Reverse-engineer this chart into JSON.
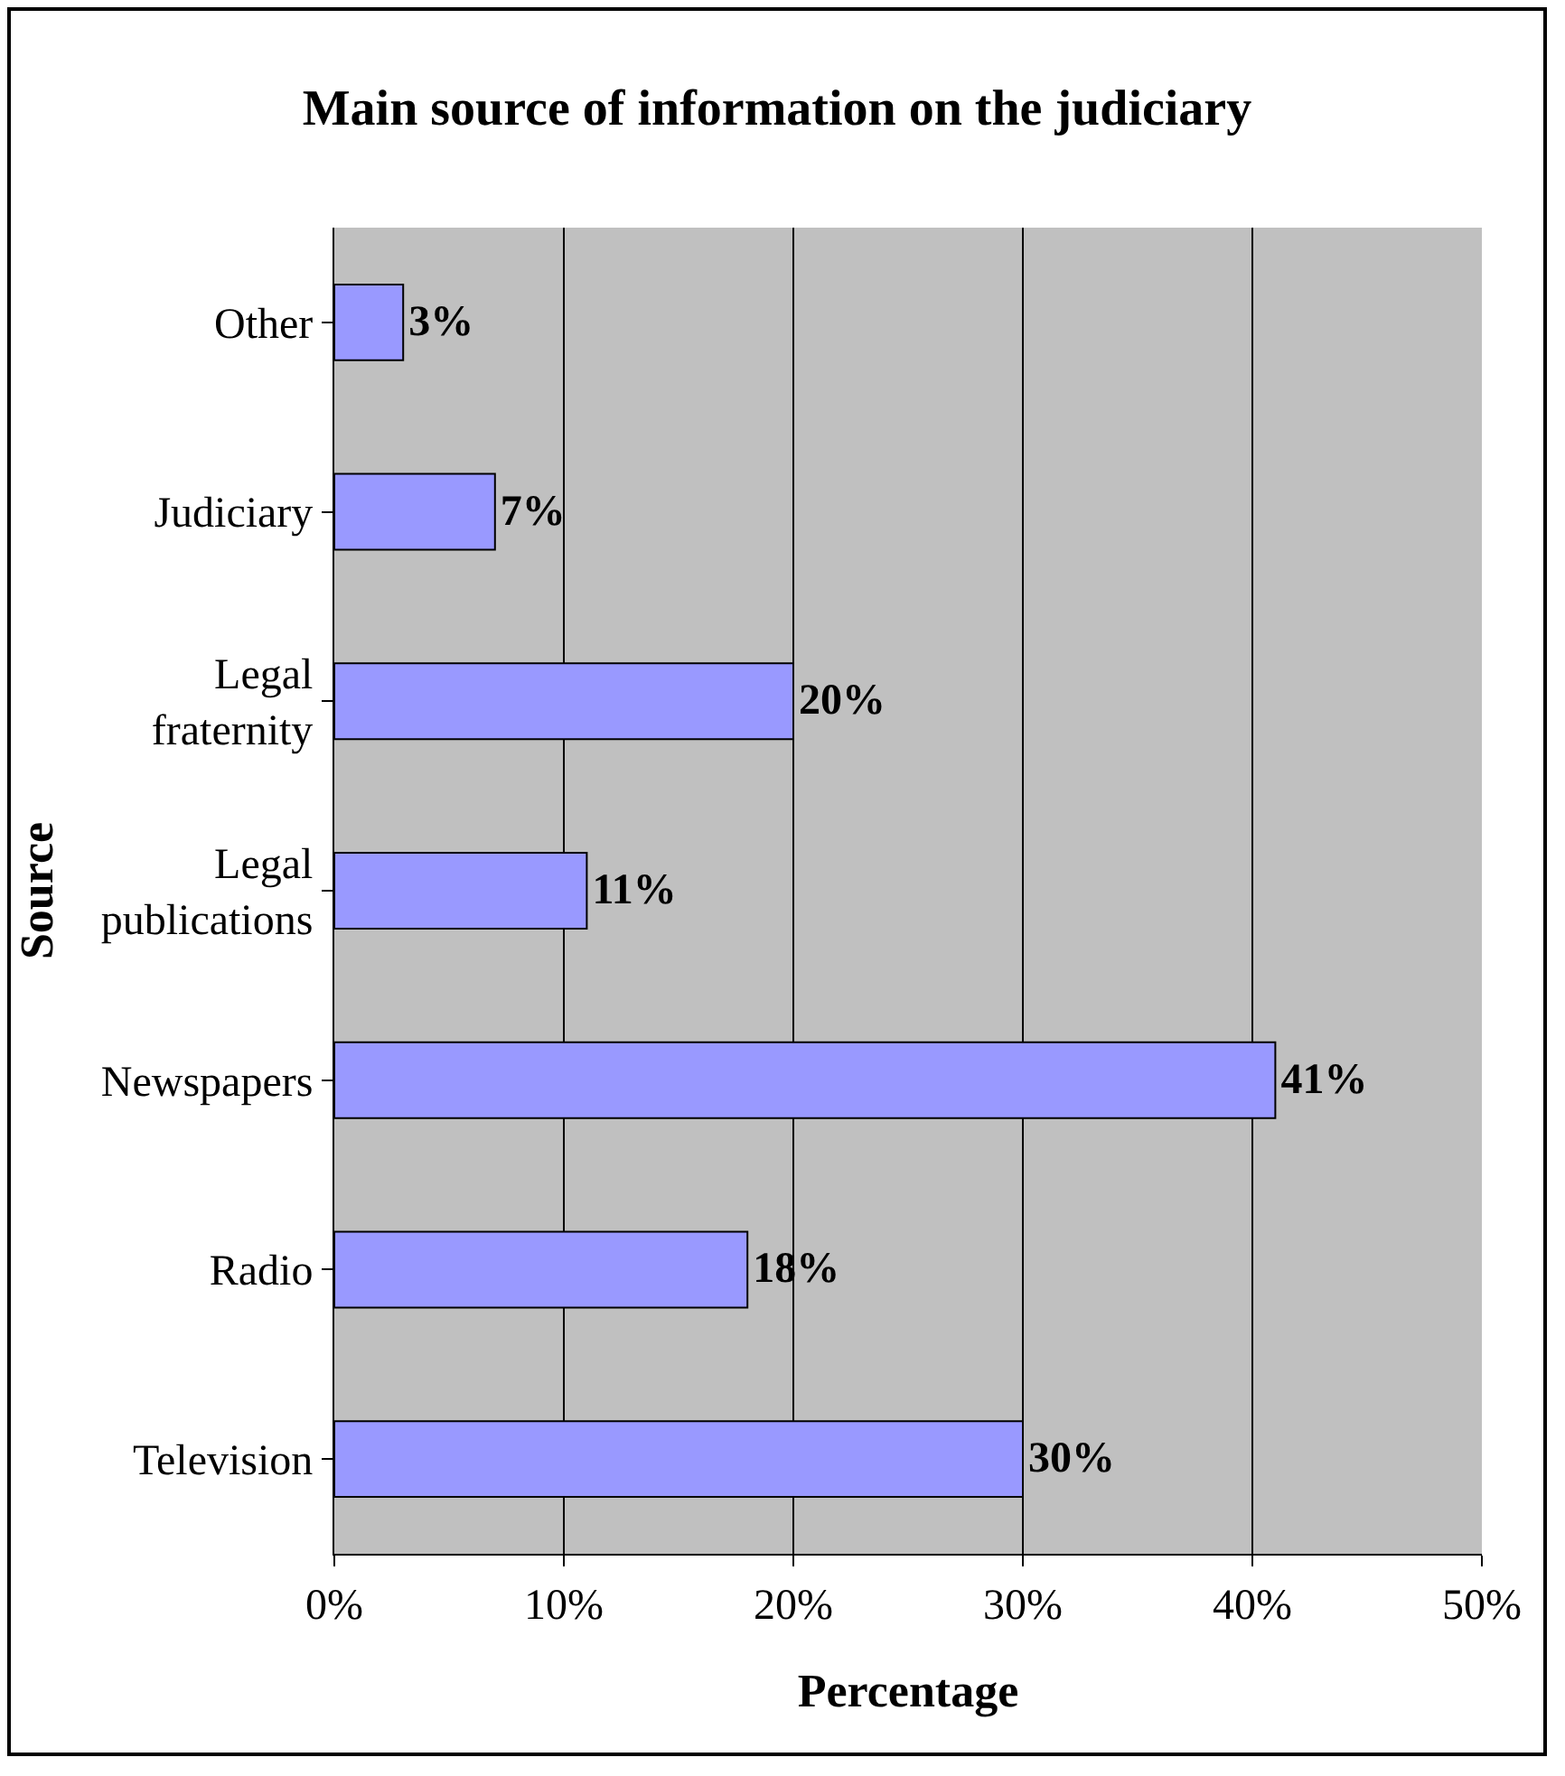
{
  "chart_data": {
    "type": "bar",
    "orientation": "horizontal",
    "title": "Main source of information on the judiciary",
    "xlabel": "Percentage",
    "ylabel": "Source",
    "categories": [
      "Other",
      "Judiciary",
      "Legal fraternity",
      "Legal publications",
      "Newspapers",
      "Radio",
      "Television"
    ],
    "values": [
      3,
      7,
      20,
      11,
      41,
      18,
      30
    ],
    "value_labels": [
      "3%",
      "7%",
      "20%",
      "11%",
      "41%",
      "18%",
      "30%"
    ],
    "color": "#9999ff",
    "xlim": [
      0,
      50
    ],
    "xticks": [
      {
        "value": 0,
        "label": "0%"
      },
      {
        "value": 10,
        "label": "10%"
      },
      {
        "value": 20,
        "label": "20%"
      },
      {
        "value": 30,
        "label": "30%"
      },
      {
        "value": 40,
        "label": "40%"
      },
      {
        "value": 50,
        "label": "50%"
      }
    ],
    "grid": "x"
  }
}
